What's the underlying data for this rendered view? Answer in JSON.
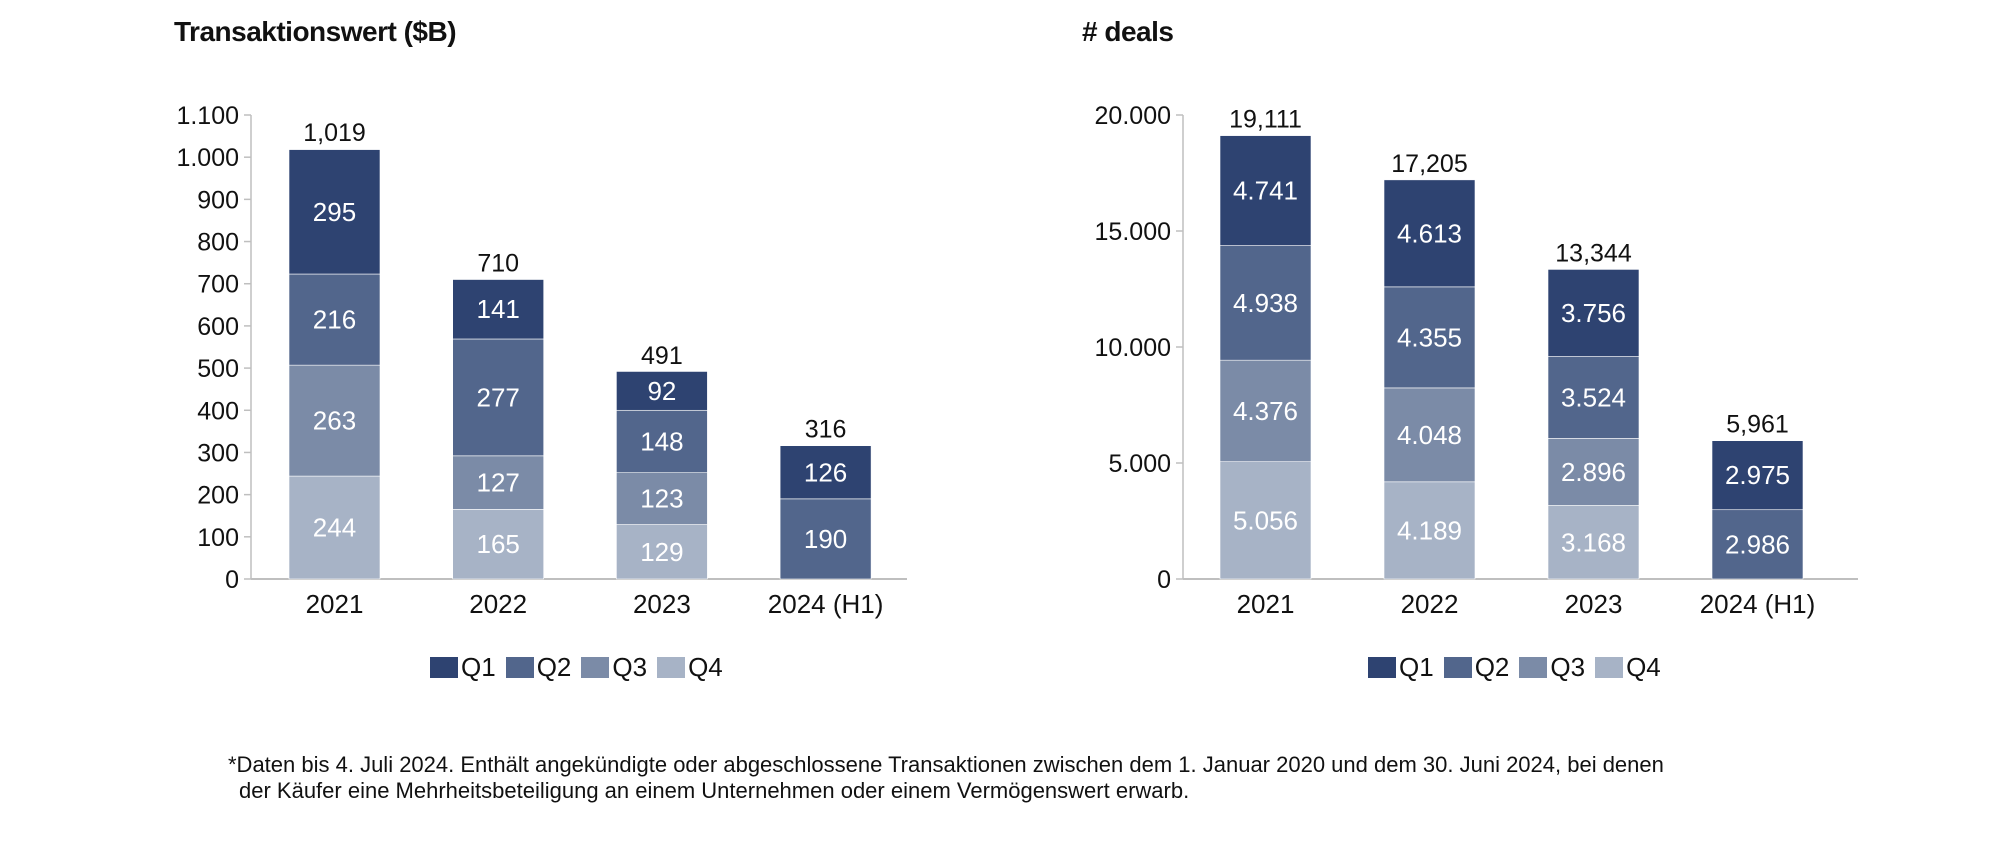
{
  "colors": {
    "Q1": "#2E4371",
    "Q2": "#52668C",
    "Q3": "#7B8BA7",
    "Q4": "#A7B3C6",
    "axis": "#BFBFBF"
  },
  "legend": [
    "Q1",
    "Q2",
    "Q3",
    "Q4"
  ],
  "chart_data": [
    {
      "type": "bar",
      "stacked": true,
      "title": "Transaktionswert ($B)",
      "xlabel": "",
      "ylabel": "",
      "categories": [
        "2021",
        "2022",
        "2023",
        "2024 (H1)"
      ],
      "ylim": [
        0,
        1100
      ],
      "yticks": [
        0,
        100,
        200,
        300,
        400,
        500,
        600,
        700,
        800,
        900,
        1000,
        1100
      ],
      "ytick_labels": [
        "0",
        "100",
        "200",
        "300",
        "400",
        "500",
        "600",
        "700",
        "800",
        "900",
        "1.000",
        "1.100"
      ],
      "grid": false,
      "legend_position": "bottom",
      "series": [
        {
          "name": "Q4",
          "values": [
            244,
            165,
            129,
            null
          ],
          "labels": [
            "244",
            "165",
            "129",
            ""
          ]
        },
        {
          "name": "Q3",
          "values": [
            263,
            127,
            123,
            null
          ],
          "labels": [
            "263",
            "127",
            "123",
            ""
          ]
        },
        {
          "name": "Q2",
          "values": [
            216,
            277,
            148,
            190
          ],
          "labels": [
            "216",
            "277",
            "148",
            "190"
          ]
        },
        {
          "name": "Q1",
          "values": [
            295,
            141,
            92,
            126
          ],
          "labels": [
            "295",
            "141",
            "92",
            "126"
          ]
        }
      ],
      "totals": [
        1019,
        710,
        491,
        316
      ],
      "total_labels": [
        "1,019",
        "710",
        "491",
        "316"
      ]
    },
    {
      "type": "bar",
      "stacked": true,
      "title": "# deals",
      "xlabel": "",
      "ylabel": "",
      "categories": [
        "2021",
        "2022",
        "2023",
        "2024 (H1)"
      ],
      "ylim": [
        0,
        20000
      ],
      "yticks": [
        0,
        5000,
        10000,
        15000,
        20000
      ],
      "ytick_labels": [
        "0",
        "5.000",
        "10.000",
        "15.000",
        "20.000"
      ],
      "grid": false,
      "legend_position": "bottom",
      "series": [
        {
          "name": "Q4",
          "values": [
            5056,
            4189,
            3168,
            null
          ],
          "labels": [
            "5.056",
            "4.189",
            "3.168",
            ""
          ]
        },
        {
          "name": "Q3",
          "values": [
            4376,
            4048,
            2896,
            null
          ],
          "labels": [
            "4.376",
            "4.048",
            "2.896",
            ""
          ]
        },
        {
          "name": "Q2",
          "values": [
            4938,
            4355,
            3524,
            2986
          ],
          "labels": [
            "4.938",
            "4.355",
            "3.524",
            "2.986"
          ]
        },
        {
          "name": "Q1",
          "values": [
            4741,
            4613,
            3756,
            2975
          ],
          "labels": [
            "4.741",
            "4.613",
            "3.756",
            "2.975"
          ]
        }
      ],
      "totals": [
        19111,
        17205,
        13344,
        5961
      ],
      "total_labels": [
        "19,111",
        "17,205",
        "13,344",
        "5,961"
      ]
    }
  ],
  "footnote": {
    "line1": "*Daten bis 4. Juli 2024. Enthält angekündigte oder abgeschlossene Transaktionen zwischen dem 1. Januar 2020 und dem 30. Juni 2024, bei denen",
    "line2": "der Käufer eine Mehrheitsbeteiligung an einem Unternehmen oder einem Vermögenswert erwarb."
  }
}
